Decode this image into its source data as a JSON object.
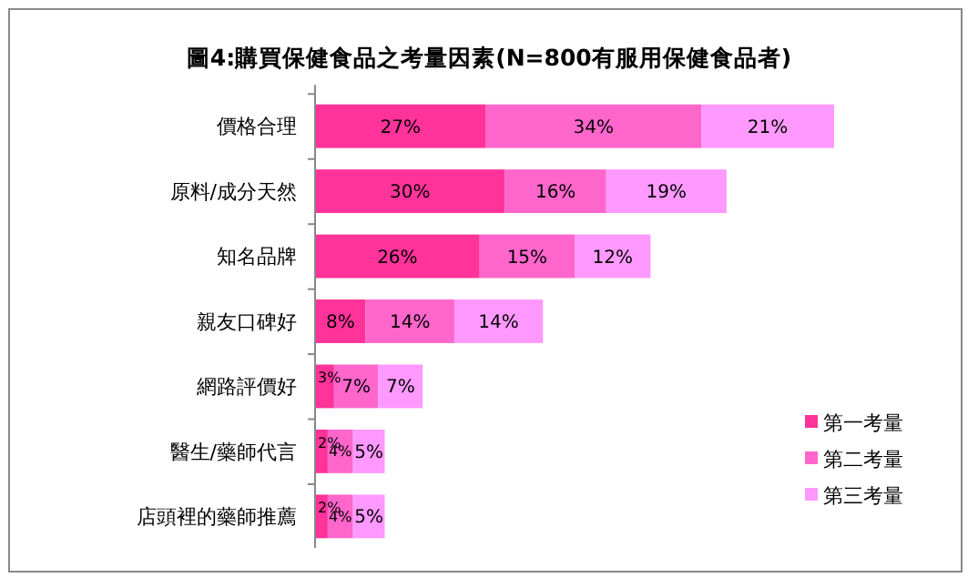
{
  "chart_data": {
    "type": "bar",
    "orientation": "horizontal",
    "stacked": true,
    "title": "圖4:購買保健食品之考量因素(N=800有服用保健食品者)",
    "categories": [
      "價格合理",
      "原料/成分天然",
      "知名品牌",
      "親友口碑好",
      "網路評價好",
      "醫生/藥師代言",
      "店頭裡的藥師推薦"
    ],
    "series": [
      {
        "name": "第一考量",
        "color": "#ff3399",
        "values": [
          27,
          30,
          26,
          8,
          3,
          2,
          2
        ],
        "value_labels": [
          "27%",
          "30%",
          "26%",
          "8%",
          "3%",
          "2%",
          "2%"
        ]
      },
      {
        "name": "第二考量",
        "color": "#ff66cc",
        "values": [
          34,
          16,
          15,
          14,
          7,
          4,
          4
        ],
        "value_labels": [
          "34%",
          "16%",
          "15%",
          "14%",
          "7%",
          "4%",
          "4%"
        ]
      },
      {
        "name": "第三考量",
        "color": "#ff99ff",
        "values": [
          21,
          19,
          12,
          14,
          7,
          5,
          5
        ],
        "value_labels": [
          "21%",
          "19%",
          "12%",
          "14%",
          "7%",
          "5%",
          "5%"
        ]
      }
    ],
    "legend": "bottom right"
  }
}
